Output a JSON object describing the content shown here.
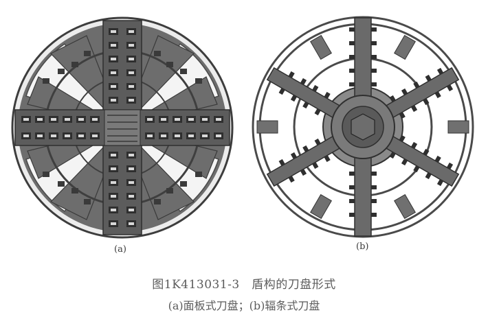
{
  "figure": {
    "panels": [
      {
        "id": "a",
        "label": "(a)"
      },
      {
        "id": "b",
        "label": "(b)"
      }
    ],
    "caption": {
      "title": "图1K413031-3　盾构的刀盘形式",
      "subtitle": "(a)面板式刀盘；(b)辐条式刀盘"
    }
  }
}
